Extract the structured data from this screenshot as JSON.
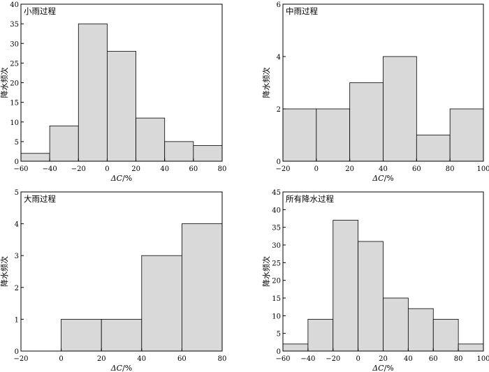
{
  "figure": {
    "x_axis_label_delta": "ΔC",
    "x_axis_label_rest": "/%"
  },
  "chart_data": [
    {
      "type": "bar",
      "title": "小雨过程",
      "xlabel": "ΔC/%",
      "ylabel": "降水频次",
      "bin_edges": [
        -60,
        -40,
        -20,
        0,
        20,
        40,
        60,
        80
      ],
      "values": [
        2,
        9,
        35,
        28,
        11,
        5,
        4
      ],
      "xlim": [
        -60,
        80
      ],
      "ylim": [
        0,
        40
      ],
      "xticks": [
        -60,
        -40,
        -20,
        0,
        20,
        40,
        60,
        80
      ],
      "yticks": [
        0,
        5,
        10,
        15,
        20,
        25,
        30,
        35,
        40
      ],
      "bar_color": "#d9d9d9"
    },
    {
      "type": "bar",
      "title": "中雨过程",
      "xlabel": "ΔC/%",
      "ylabel": "降水频次",
      "bin_edges": [
        -20,
        0,
        20,
        40,
        60,
        80,
        100
      ],
      "values": [
        2,
        2,
        3,
        4,
        1,
        2
      ],
      "xlim": [
        -20,
        100
      ],
      "ylim": [
        0,
        6
      ],
      "xticks": [
        -20,
        0,
        20,
        40,
        60,
        80,
        100
      ],
      "yticks": [
        0,
        2,
        4,
        6
      ],
      "bar_color": "#d9d9d9"
    },
    {
      "type": "bar",
      "title": "大雨过程",
      "xlabel": "ΔC/%",
      "ylabel": "降水频次",
      "bin_edges": [
        -20,
        0,
        20,
        40,
        60,
        80
      ],
      "values": [
        0,
        1,
        1,
        3,
        4
      ],
      "xlim": [
        -20,
        80
      ],
      "ylim": [
        0,
        5
      ],
      "xticks": [
        -20,
        0,
        20,
        40,
        60,
        80
      ],
      "yticks": [
        0,
        1,
        2,
        3,
        4,
        5
      ],
      "bar_color": "#d9d9d9"
    },
    {
      "type": "bar",
      "title": "所有降水过程",
      "xlabel": "ΔC/%",
      "ylabel": "降水频次",
      "bin_edges": [
        -60,
        -40,
        -20,
        0,
        20,
        40,
        60,
        80,
        100
      ],
      "values": [
        2,
        9,
        37,
        31,
        15,
        12,
        9,
        2
      ],
      "xlim": [
        -60,
        100
      ],
      "ylim": [
        0,
        45
      ],
      "xticks": [
        -60,
        -40,
        -20,
        0,
        20,
        40,
        60,
        80,
        100
      ],
      "yticks": [
        0,
        5,
        10,
        15,
        20,
        25,
        30,
        35,
        40,
        45
      ],
      "bar_color": "#d9d9d9"
    }
  ]
}
